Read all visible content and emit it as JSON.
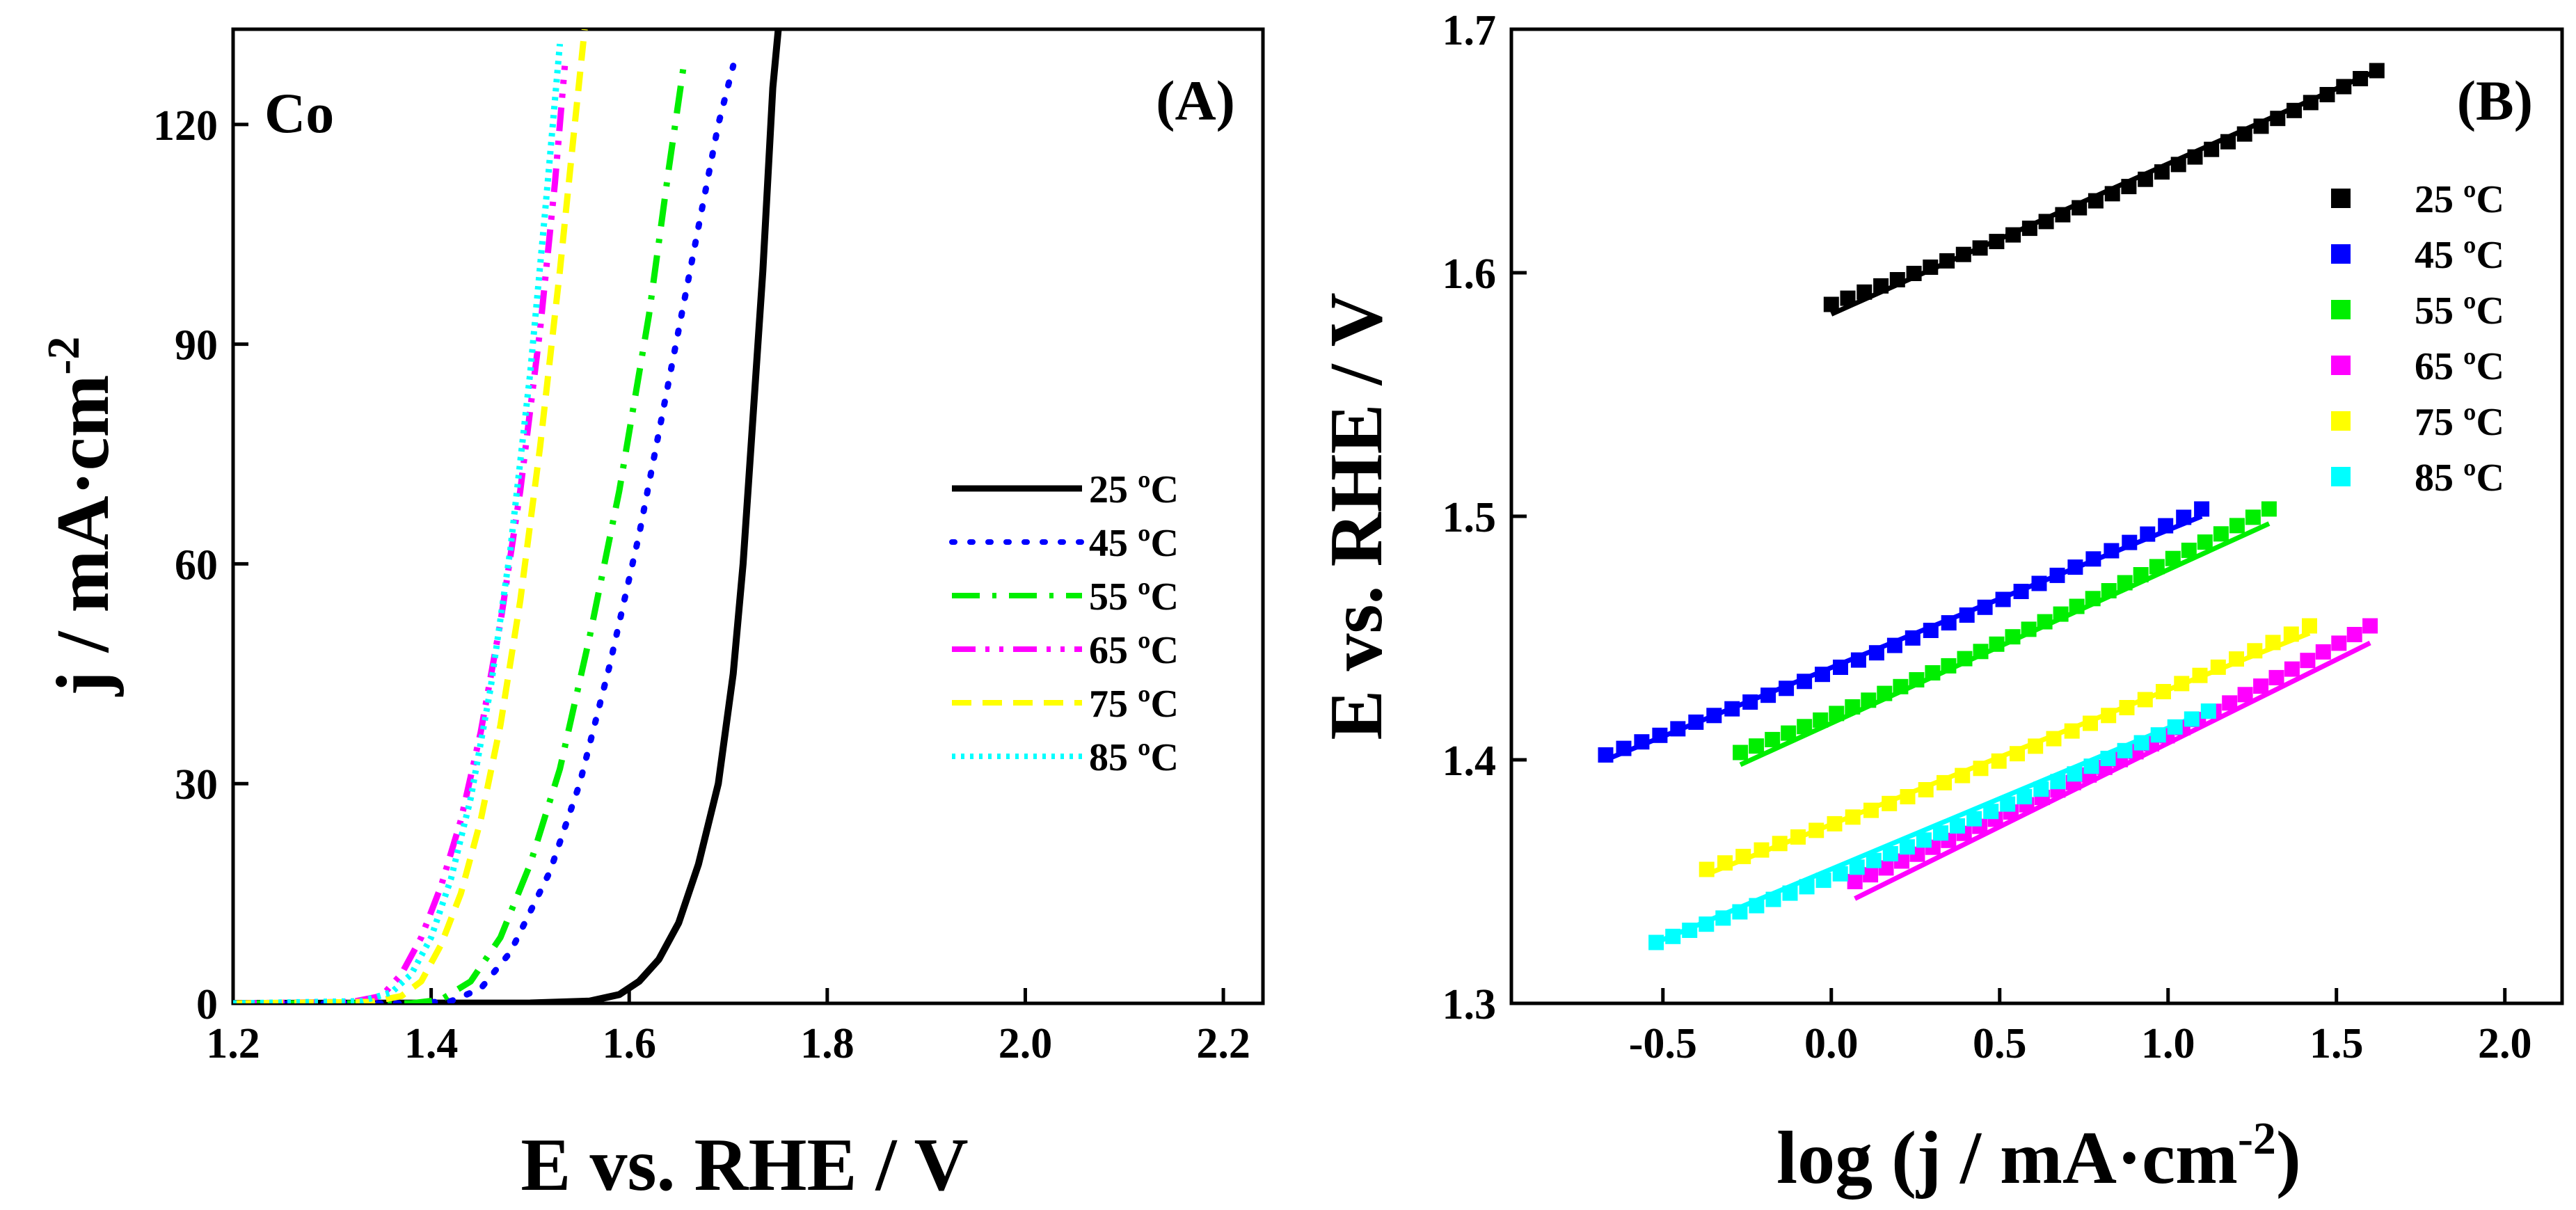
{
  "colors": {
    "25": "#000000",
    "45": "#0000ff",
    "55": "#00ee00",
    "65": "#ff00ff",
    "75": "#ffff00",
    "85": "#00ffff"
  },
  "chart_data": [
    {
      "panel": "(A)",
      "type": "line",
      "sample_label": "Co",
      "xlabel": "E vs. RHE /  V",
      "ylabel_main": "j / mA·cm",
      "ylabel_sup": "-2",
      "xlim": [
        1.2,
        2.24
      ],
      "ylim": [
        0,
        133
      ],
      "xticks": [
        1.2,
        1.4,
        1.6,
        1.8,
        2.0,
        2.2
      ],
      "xtick_labels": [
        "1.2",
        "1.4",
        "1.6",
        "1.8",
        "2.0",
        "2.2"
      ],
      "yticks": [
        0,
        30,
        60,
        90,
        120
      ],
      "ytick_labels": [
        "0",
        "30",
        "60",
        "90",
        "120"
      ],
      "legend_position": "center-right",
      "series": [
        {
          "name": "25 ºC",
          "style": "solid",
          "color_key": "25",
          "points": [
            [
              1.2,
              0
            ],
            [
              1.5,
              0.05
            ],
            [
              1.56,
              0.3
            ],
            [
              1.59,
              1.2
            ],
            [
              1.61,
              3
            ],
            [
              1.63,
              6
            ],
            [
              1.65,
              11
            ],
            [
              1.67,
              19
            ],
            [
              1.69,
              30
            ],
            [
              1.705,
              45
            ],
            [
              1.715,
              60
            ],
            [
              1.725,
              80
            ],
            [
              1.735,
              100
            ],
            [
              1.745,
              125
            ],
            [
              1.752,
              135
            ]
          ]
        },
        {
          "name": "45 ºC",
          "style": "dot",
          "color_key": "45",
          "points": [
            [
              1.2,
              0
            ],
            [
              1.38,
              0
            ],
            [
              1.42,
              0.3
            ],
            [
              1.45,
              2
            ],
            [
              1.48,
              7
            ],
            [
              1.52,
              18
            ],
            [
              1.55,
              30
            ],
            [
              1.58,
              46
            ],
            [
              1.61,
              64
            ],
            [
              1.64,
              85
            ],
            [
              1.67,
              106
            ],
            [
              1.69,
              120
            ],
            [
              1.705,
              128
            ]
          ]
        },
        {
          "name": "55 ºC",
          "style": "dashdot",
          "color_key": "55",
          "points": [
            [
              1.2,
              0
            ],
            [
              1.38,
              0
            ],
            [
              1.41,
              0.5
            ],
            [
              1.44,
              3
            ],
            [
              1.47,
              9
            ],
            [
              1.5,
              19
            ],
            [
              1.53,
              32
            ],
            [
              1.56,
              50
            ],
            [
              1.59,
              70
            ],
            [
              1.62,
              94
            ],
            [
              1.64,
              114
            ],
            [
              1.655,
              128
            ]
          ]
        },
        {
          "name": "65 ºC",
          "style": "dashdotdot",
          "color_key": "65",
          "points": [
            [
              1.2,
              0
            ],
            [
              1.32,
              0.2
            ],
            [
              1.35,
              1
            ],
            [
              1.37,
              4
            ],
            [
              1.39,
              9
            ],
            [
              1.41,
              16
            ],
            [
              1.43,
              25
            ],
            [
              1.45,
              37
            ],
            [
              1.47,
              52
            ],
            [
              1.49,
              70
            ],
            [
              1.51,
              92
            ],
            [
              1.525,
              112
            ],
            [
              1.535,
              128
            ]
          ]
        },
        {
          "name": "75 ºC",
          "style": "dash",
          "color_key": "75",
          "points": [
            [
              1.2,
              0
            ],
            [
              1.34,
              0.2
            ],
            [
              1.37,
              1
            ],
            [
              1.39,
              3
            ],
            [
              1.41,
              8
            ],
            [
              1.43,
              15
            ],
            [
              1.45,
              25
            ],
            [
              1.47,
              38
            ],
            [
              1.49,
              55
            ],
            [
              1.51,
              76
            ],
            [
              1.53,
              100
            ],
            [
              1.545,
              120
            ],
            [
              1.555,
              133
            ]
          ]
        },
        {
          "name": "85 ºC",
          "style": "shortdot",
          "color_key": "85",
          "points": [
            [
              1.2,
              0
            ],
            [
              1.33,
              0.3
            ],
            [
              1.36,
              1.5
            ],
            [
              1.38,
              4
            ],
            [
              1.4,
              9
            ],
            [
              1.42,
              17
            ],
            [
              1.44,
              28
            ],
            [
              1.46,
              43
            ],
            [
              1.48,
              62
            ],
            [
              1.5,
              86
            ],
            [
              1.515,
              108
            ],
            [
              1.53,
              131
            ]
          ]
        }
      ]
    },
    {
      "panel": "(B)",
      "type": "scatter",
      "xlabel_main": "log (j / mA·cm",
      "xlabel_sup": "-2",
      "xlabel_end": ")",
      "ylabel": "E vs. RHE / V",
      "xlim": [
        -0.95,
        2.17
      ],
      "ylim": [
        1.3,
        1.7
      ],
      "xticks": [
        -0.5,
        0.0,
        0.5,
        1.0,
        1.5,
        2.0
      ],
      "xtick_labels": [
        "-0.5",
        "0.0",
        "0.5",
        "1.0",
        "1.5",
        "2.0"
      ],
      "yticks": [
        1.3,
        1.4,
        1.5,
        1.6,
        1.7
      ],
      "ytick_labels": [
        "1.3",
        "1.4",
        "1.5",
        "1.6",
        "1.7"
      ],
      "legend_position": "top-right",
      "series": [
        {
          "name": "25 ºC",
          "color_key": "25",
          "x_start": 0.0,
          "x_end": 1.62,
          "y_start": 1.587,
          "y_end": 1.683,
          "fit_x": [
            0.0,
            1.62
          ],
          "fit_y": [
            1.583,
            1.683
          ]
        },
        {
          "name": "45 ºC",
          "color_key": "45",
          "x_start": -0.67,
          "x_end": 1.1,
          "y_start": 1.402,
          "y_end": 1.503,
          "fit_x": [
            -0.67,
            1.1
          ],
          "fit_y": [
            1.4,
            1.5
          ]
        },
        {
          "name": "55 ºC",
          "color_key": "55",
          "x_start": -0.27,
          "x_end": 1.3,
          "y_start": 1.403,
          "y_end": 1.503,
          "fit_x": [
            -0.27,
            1.3
          ],
          "fit_y": [
            1.398,
            1.497
          ]
        },
        {
          "name": "65 ºC",
          "color_key": "65",
          "x_start": 0.07,
          "x_end": 1.6,
          "y_start": 1.35,
          "y_end": 1.455,
          "fit_x": [
            0.07,
            1.6
          ],
          "fit_y": [
            1.343,
            1.448
          ]
        },
        {
          "name": "75 ºC",
          "color_key": "75",
          "x_start": -0.37,
          "x_end": 1.42,
          "y_start": 1.355,
          "y_end": 1.455,
          "fit_x": [
            -0.37,
            1.42
          ],
          "fit_y": [
            1.353,
            1.452
          ]
        },
        {
          "name": "85 ºC",
          "color_key": "85",
          "x_start": -0.52,
          "x_end": 1.12,
          "y_start": 1.325,
          "y_end": 1.42,
          "fit_x": [
            -0.52,
            1.12
          ],
          "fit_y": [
            1.325,
            1.42
          ]
        }
      ]
    }
  ]
}
